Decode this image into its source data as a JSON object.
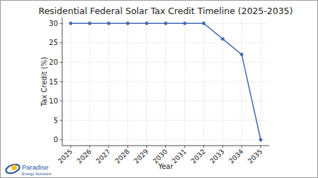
{
  "chart_data": {
    "type": "line",
    "title": "Residential Federal Solar Tax Credit Timeline (2025-2035)",
    "x_label": "Year",
    "y_label": "Tax Credit (%)",
    "categories": [
      "2025",
      "2026",
      "2027",
      "2028",
      "2029",
      "2030",
      "2031",
      "2032",
      "2033",
      "2034",
      "2035"
    ],
    "values": [
      30,
      30,
      30,
      30,
      30,
      30,
      30,
      30,
      26,
      22,
      0
    ],
    "color": "#4169b0",
    "marker": "circle",
    "line_style": "solid",
    "ylim": [
      -1.5,
      31.5
    ],
    "yticks": [
      0,
      5,
      10,
      15,
      20,
      25,
      30
    ],
    "grid": true
  },
  "logo": {
    "name": "Paradise",
    "tagline": "Energy Solutions"
  }
}
